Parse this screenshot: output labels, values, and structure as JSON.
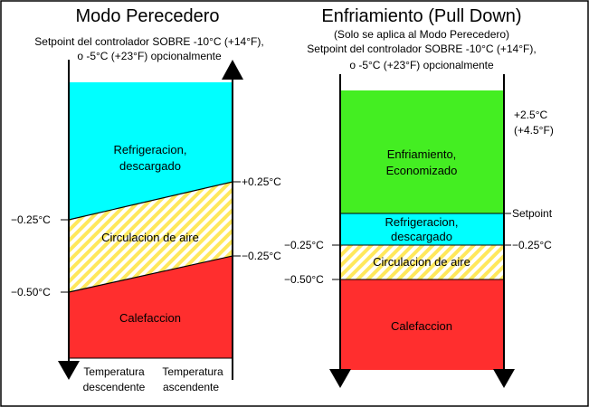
{
  "colors": {
    "cyan": "#00ffff",
    "green": "#44ee22",
    "red": "#ff2e2e",
    "stripe_yellow": "#ffe85c",
    "border": "#000000"
  },
  "left": {
    "title": "Modo Perecedero",
    "subtitle_1": "Setpoint del controlador SOBRE -10°C (+14°F),",
    "subtitle_2": "o -5°C (+23°F) opcionalmente",
    "zone_refrig_1": "Refrigeracion,",
    "zone_refrig_2": "descargado",
    "zone_circ": "Circulacion de aire",
    "zone_heat": "Calefaccion",
    "tick_plus025": "+0.25°C",
    "tick_minus025_left": "−0.25°C",
    "tick_minus025_right": "−0.25°C",
    "tick_minus050": "−0.50°C",
    "arrow_down_1": "Temperatura",
    "arrow_down_2": "descendente",
    "arrow_up_1": "Temperatura",
    "arrow_up_2": "ascendente"
  },
  "right": {
    "title": "Enfriamiento (Pull Down)",
    "subtitle_0": "(Solo se aplica al Modo Perecedero)",
    "subtitle_1": "Setpoint del controlador SOBRE -10°C (+14°F),",
    "subtitle_2": "o -5°C (+23°F) opcionalmente",
    "zone_pull_1": "Enfriamiento,",
    "zone_pull_2": "Economizado",
    "zone_refrig_1": "Refrigeracion,",
    "zone_refrig_2": "descargado",
    "zone_circ": "Circulacion de aire",
    "zone_heat": "Calefaccion",
    "tick_top_1": "+2.5°C",
    "tick_top_2": "(+4.5°F)",
    "tick_setpoint": "Setpoint",
    "tick_minus025_left": "−0.25°C",
    "tick_minus025_right": "−0.25°C",
    "tick_minus050": "−0.50°C"
  }
}
